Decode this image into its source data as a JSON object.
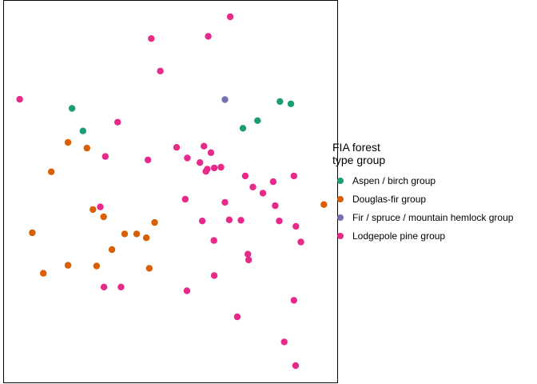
{
  "chart_data": {
    "type": "scatter",
    "title": "",
    "xlabel": "",
    "ylabel": "",
    "grid": false,
    "axes_visible": false,
    "xlim": [
      0,
      100
    ],
    "ylim": [
      0,
      100
    ],
    "legend": {
      "title_lines": [
        "FIA forest",
        "type group"
      ],
      "placement": "right"
    },
    "series": [
      {
        "name": "Aspen / birch group",
        "color": "#1B9E77",
        "points": [
          [
            20.4,
            71.8
          ],
          [
            23.7,
            65.9
          ],
          [
            71.7,
            66.6
          ],
          [
            76.1,
            68.6
          ],
          [
            82.8,
            73.6
          ],
          [
            86.1,
            73.0
          ]
        ]
      },
      {
        "name": "Douglas-fir group",
        "color": "#D95F02",
        "points": [
          [
            19.2,
            62.9
          ],
          [
            24.9,
            61.4
          ],
          [
            14.2,
            55.2
          ],
          [
            26.7,
            45.3
          ],
          [
            29.9,
            43.4
          ],
          [
            45.2,
            41.9
          ],
          [
            8.5,
            39.2
          ],
          [
            39.8,
            38.9
          ],
          [
            36.2,
            38.9
          ],
          [
            42.7,
            37.9
          ],
          [
            32.4,
            34.8
          ],
          [
            19.2,
            30.7
          ],
          [
            27.8,
            30.5
          ],
          [
            43.6,
            29.9
          ],
          [
            11.8,
            28.6
          ],
          [
            96.0,
            46.6
          ]
        ]
      },
      {
        "name": "Fir / spruce / mountain hemlock group",
        "color": "#7570B3",
        "points": [
          [
            66.3,
            74.1
          ]
        ]
      },
      {
        "name": "Lodgepole pine group",
        "color": "#E7298A",
        "points": [
          [
            67.9,
            95.8
          ],
          [
            61.3,
            90.7
          ],
          [
            44.2,
            90.1
          ],
          [
            46.9,
            81.6
          ],
          [
            4.7,
            74.2
          ],
          [
            34.1,
            68.2
          ],
          [
            51.8,
            61.6
          ],
          [
            60.0,
            61.9
          ],
          [
            62.1,
            60.2
          ],
          [
            30.4,
            59.2
          ],
          [
            55.0,
            58.8
          ],
          [
            43.2,
            58.3
          ],
          [
            58.8,
            57.6
          ],
          [
            61.0,
            55.9
          ],
          [
            63.1,
            56.2
          ],
          [
            65.1,
            56.4
          ],
          [
            60.6,
            55.3
          ],
          [
            72.4,
            54.1
          ],
          [
            74.7,
            51.2
          ],
          [
            87.0,
            54.1
          ],
          [
            80.8,
            52.6
          ],
          [
            77.7,
            49.6
          ],
          [
            54.4,
            48.0
          ],
          [
            66.3,
            47.2
          ],
          [
            81.4,
            46.3
          ],
          [
            28.9,
            46.0
          ],
          [
            59.5,
            42.3
          ],
          [
            67.6,
            42.6
          ],
          [
            71.1,
            42.5
          ],
          [
            82.6,
            42.3
          ],
          [
            87.6,
            40.9
          ],
          [
            89.1,
            36.8
          ],
          [
            63.0,
            37.2
          ],
          [
            73.2,
            33.6
          ],
          [
            73.4,
            32.1
          ],
          [
            63.1,
            28.0
          ],
          [
            30.0,
            25.0
          ],
          [
            35.1,
            25.0
          ],
          [
            54.9,
            24.0
          ],
          [
            87.0,
            21.5
          ],
          [
            70.0,
            17.2
          ],
          [
            84.1,
            10.6
          ],
          [
            87.5,
            4.4
          ]
        ]
      }
    ]
  }
}
